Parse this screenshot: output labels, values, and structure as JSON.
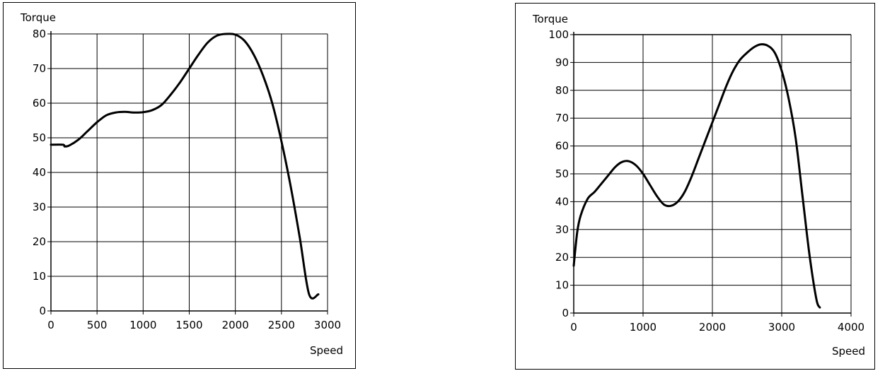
{
  "chart_data": [
    {
      "type": "line",
      "xlabel": "Speed",
      "ylabel": "Torque",
      "xlim": [
        0,
        3000
      ],
      "ylim": [
        0,
        80
      ],
      "xticks": [
        0,
        500,
        1000,
        1500,
        2000,
        2500,
        3000
      ],
      "yticks": [
        0,
        10,
        20,
        30,
        40,
        50,
        60,
        70,
        80
      ],
      "grid": true,
      "color": "#000000",
      "series": [
        {
          "x": [
            0,
            130,
            150,
            200,
            300,
            400,
            500,
            600,
            700,
            800,
            900,
            1000,
            1100,
            1200,
            1300,
            1400,
            1500,
            1600,
            1700,
            1800,
            1900,
            2000,
            2100,
            2200,
            2300,
            2400,
            2500,
            2600,
            2700,
            2800,
            2900
          ],
          "y": [
            48,
            48,
            47.5,
            47.8,
            49.5,
            52,
            54.5,
            56.5,
            57.3,
            57.5,
            57.3,
            57.4,
            58,
            59.5,
            62.5,
            66,
            70,
            74,
            77.5,
            79.5,
            80,
            79.8,
            78,
            74,
            68,
            60,
            49,
            36,
            21,
            4.8,
            4.8
          ]
        }
      ]
    },
    {
      "type": "line",
      "xlabel": "Speed",
      "ylabel": "Torque",
      "xlim": [
        0,
        4000
      ],
      "ylim": [
        0,
        100
      ],
      "xticks": [
        0,
        1000,
        2000,
        3000,
        4000
      ],
      "yticks": [
        0,
        10,
        20,
        30,
        40,
        50,
        60,
        70,
        80,
        90,
        100
      ],
      "grid": true,
      "color": "#000000",
      "series": [
        {
          "x": [
            0,
            50,
            100,
            200,
            300,
            400,
            500,
            600,
            700,
            800,
            900,
            1000,
            1100,
            1200,
            1300,
            1400,
            1500,
            1600,
            1700,
            1800,
            1900,
            2000,
            2100,
            2200,
            2300,
            2400,
            2500,
            2600,
            2700,
            2800,
            2900,
            3000,
            3100,
            3200,
            3300,
            3400,
            3500,
            3550
          ],
          "y": [
            17,
            29,
            35,
            41,
            43.5,
            46.5,
            49.5,
            52.5,
            54.3,
            54.5,
            53,
            50,
            46,
            42,
            39,
            38.5,
            40,
            43.5,
            49,
            55.5,
            62,
            68.5,
            75,
            81.5,
            87,
            91,
            93.5,
            95.5,
            96.5,
            96,
            93.5,
            87,
            77,
            63,
            42,
            21,
            5,
            2
          ]
        }
      ]
    }
  ]
}
